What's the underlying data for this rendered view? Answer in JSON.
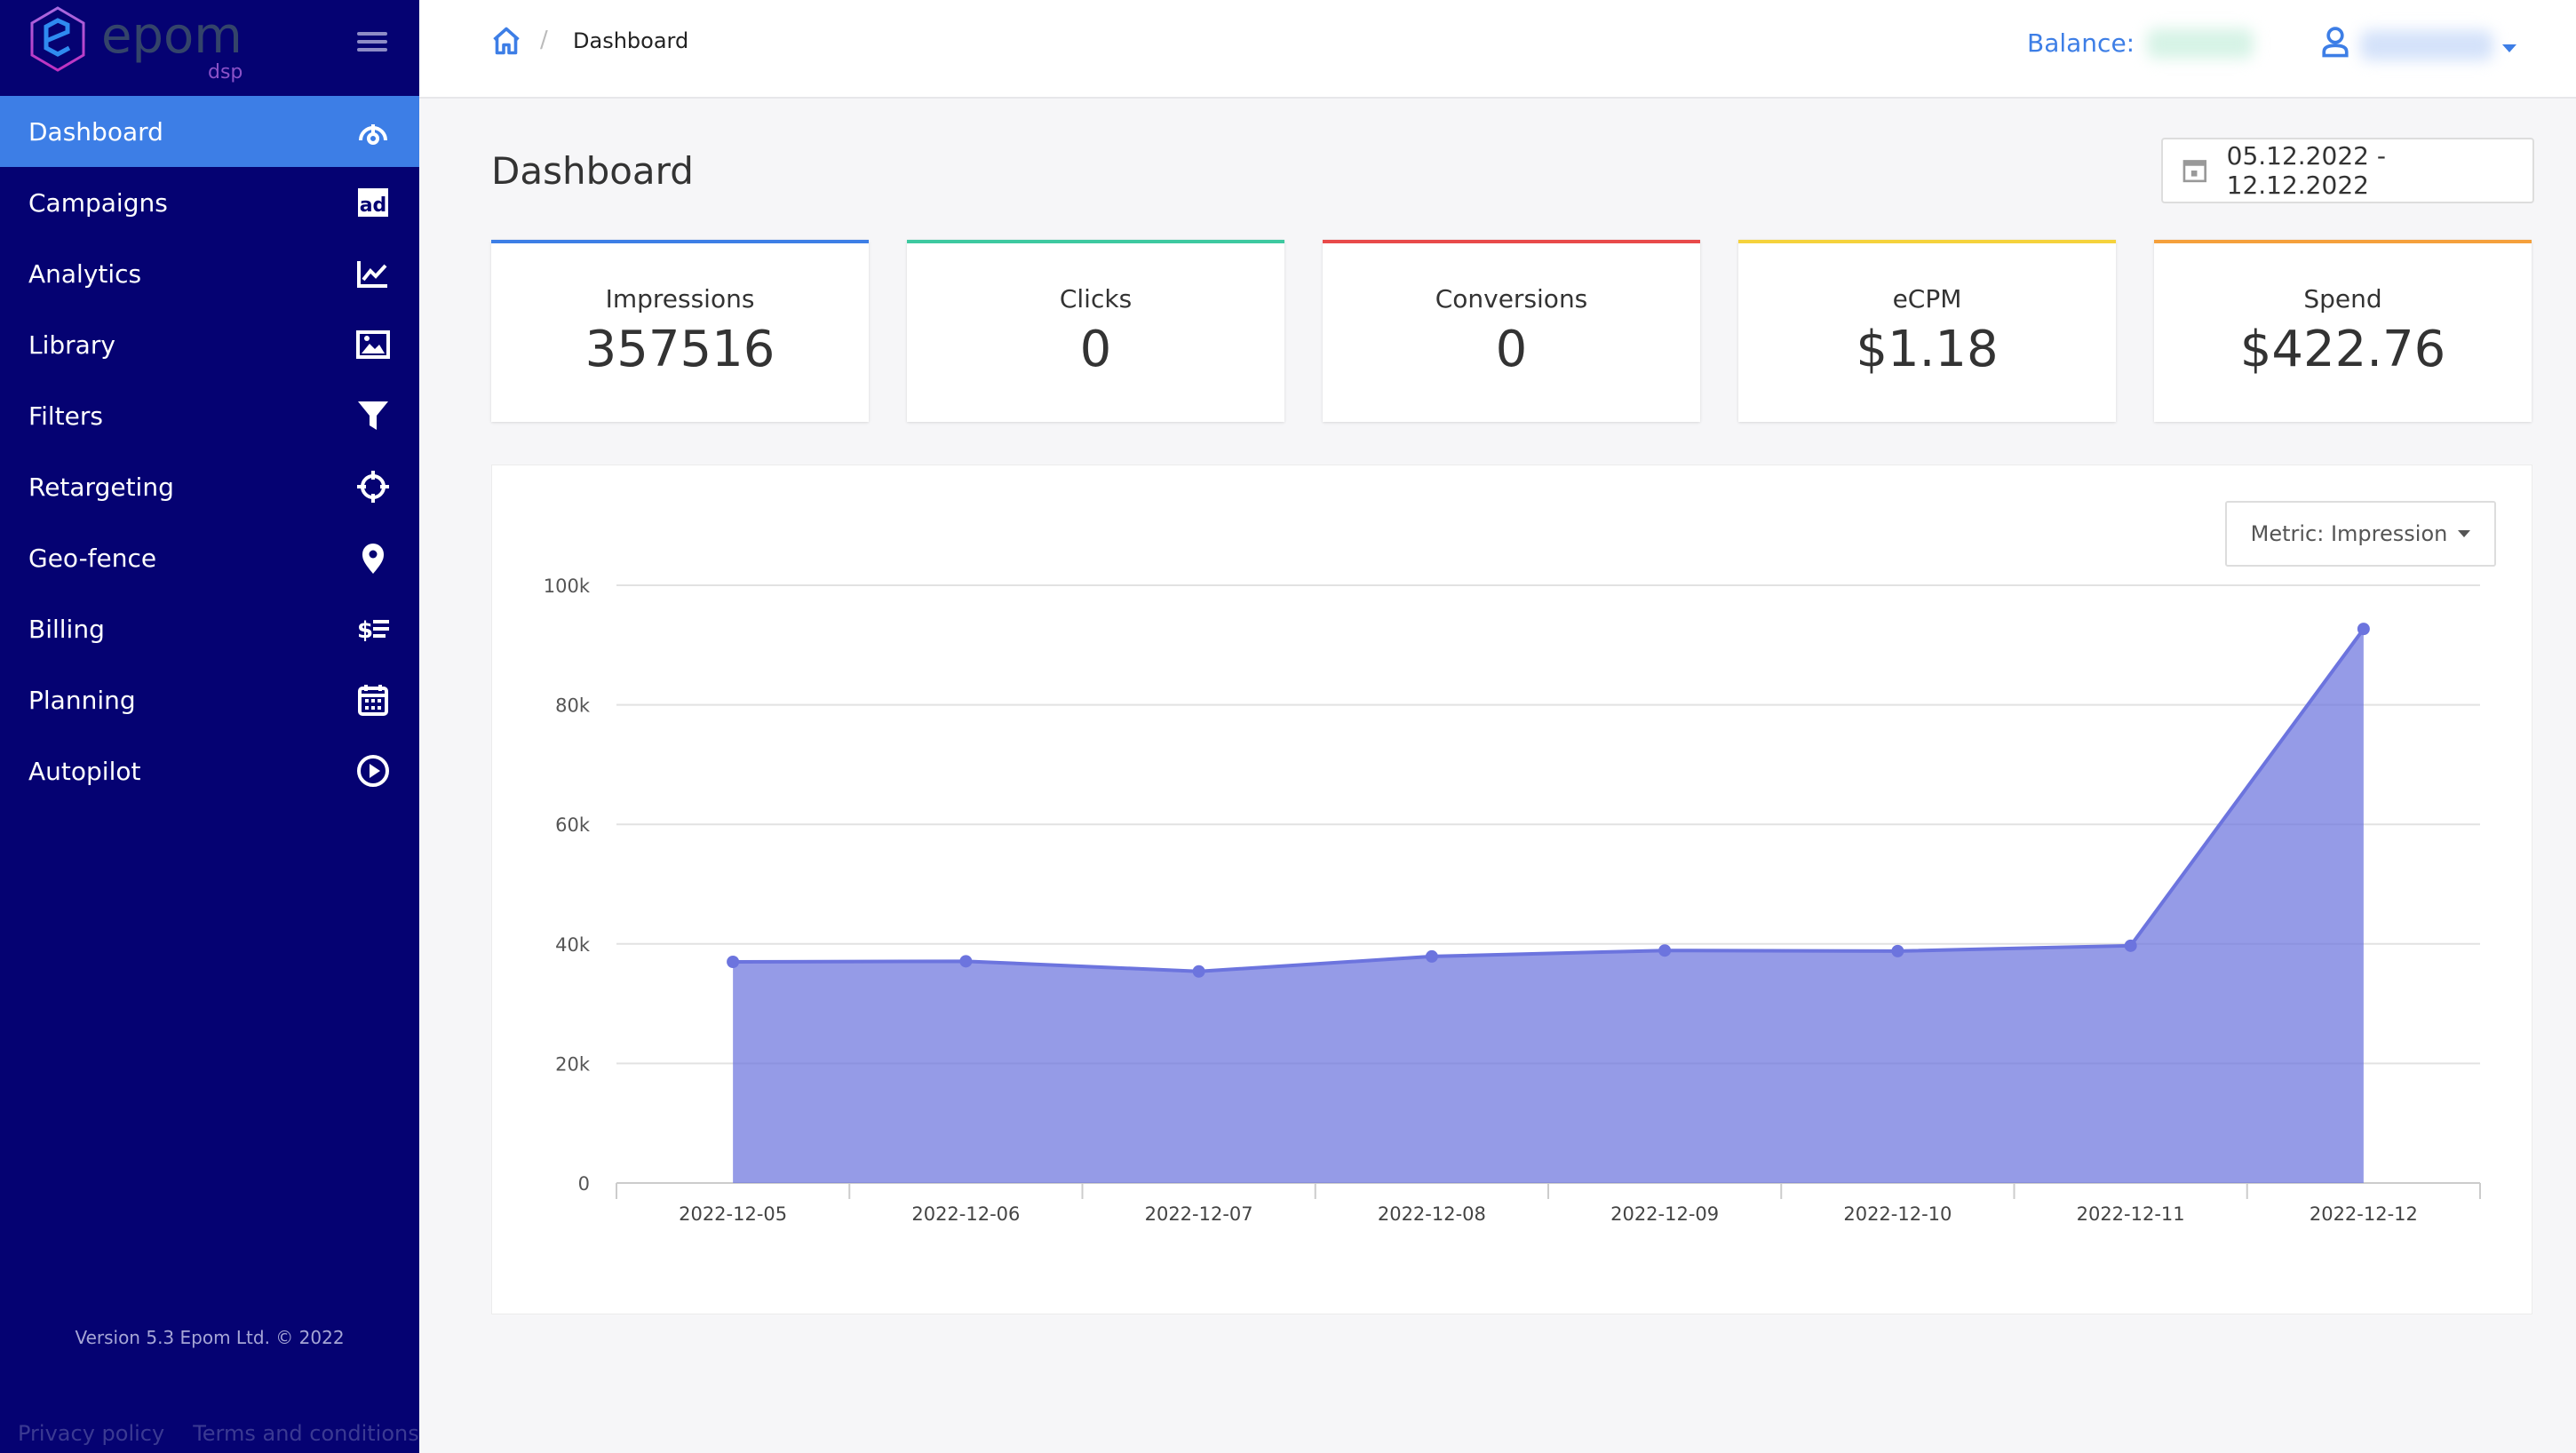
{
  "brand": {
    "name": "epom",
    "sub": "dsp"
  },
  "sidebar": {
    "items": [
      {
        "label": "Dashboard",
        "icon": "gauge-icon",
        "active": true
      },
      {
        "label": "Campaigns",
        "icon": "ad-icon"
      },
      {
        "label": "Analytics",
        "icon": "chart-line-icon"
      },
      {
        "label": "Library",
        "icon": "image-icon"
      },
      {
        "label": "Filters",
        "icon": "filter-icon"
      },
      {
        "label": "Retargeting",
        "icon": "crosshair-icon"
      },
      {
        "label": "Geo-fence",
        "icon": "map-pin-icon"
      },
      {
        "label": "Billing",
        "icon": "billing-icon"
      },
      {
        "label": "Planning",
        "icon": "calendar-icon"
      },
      {
        "label": "Autopilot",
        "icon": "play-circle-icon"
      }
    ],
    "version": "Version 5.3 Epom Ltd. © 2022",
    "privacy": "Privacy policy",
    "terms": "Terms and conditions"
  },
  "header": {
    "breadcrumb": "Dashboard",
    "balance_label": "Balance:"
  },
  "page": {
    "title": "Dashboard",
    "date_range": "05.12.2022 - 12.12.2022",
    "metric_label": "Metric: Impression"
  },
  "cards": [
    {
      "label": "Impressions",
      "value": "357516",
      "color": "#3d7ee6"
    },
    {
      "label": "Clicks",
      "value": "0",
      "color": "#3ec9a0"
    },
    {
      "label": "Conversions",
      "value": "0",
      "color": "#e84a4a"
    },
    {
      "label": "eCPM",
      "value": "$1.18",
      "color": "#f5d23c"
    },
    {
      "label": "Spend",
      "value": "$422.76",
      "color": "#f5a03c"
    }
  ],
  "chart_data": {
    "type": "area",
    "categories": [
      "2022-12-05",
      "2022-12-06",
      "2022-12-07",
      "2022-12-08",
      "2022-12-09",
      "2022-12-10",
      "2022-12-11",
      "2022-12-12"
    ],
    "series": [
      {
        "name": "Impression",
        "values": [
          37000,
          37100,
          35400,
          37900,
          38900,
          38800,
          39700,
          92700
        ],
        "color": "#6c74de"
      }
    ],
    "ylim": [
      0,
      100000
    ],
    "yticks": [
      {
        "v": 0,
        "label": "0"
      },
      {
        "v": 20000,
        "label": "20k"
      },
      {
        "v": 40000,
        "label": "40k"
      },
      {
        "v": 60000,
        "label": "60k"
      },
      {
        "v": 80000,
        "label": "80k"
      },
      {
        "v": 100000,
        "label": "100k"
      }
    ],
    "grid": true
  }
}
